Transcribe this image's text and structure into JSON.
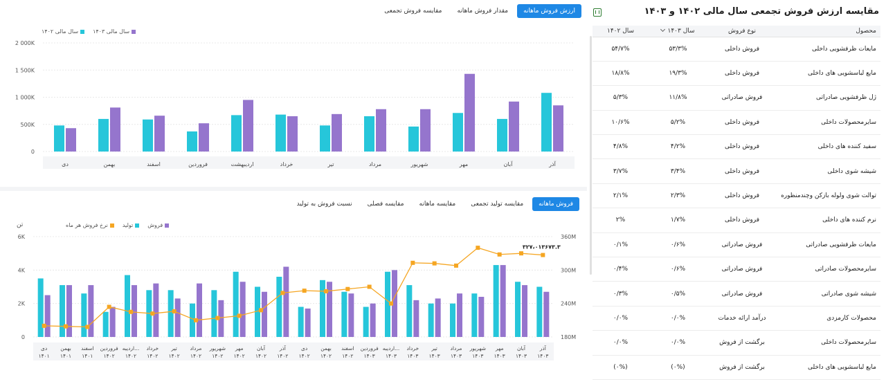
{
  "colors": {
    "teal": "#26c6da",
    "purple": "#9575cd",
    "orange": "#f5a623",
    "blue": "#1e88e5"
  },
  "top_tabs": [
    {
      "label": "ارزش فروش ماهانه",
      "active": true
    },
    {
      "label": "مقدار فروش ماهانه",
      "active": false
    },
    {
      "label": "مقایسه فروش تجمعی",
      "active": false
    }
  ],
  "bottom_tabs": [
    {
      "label": "فروش ماهانه",
      "active": true
    },
    {
      "label": "مقایسه تولید تجمعی",
      "active": false
    },
    {
      "label": "مقایسه ماهانه",
      "active": false
    },
    {
      "label": "مقایسه فصلی",
      "active": false
    },
    {
      "label": "نسبت فروش به تولید",
      "active": false
    }
  ],
  "top_legend": [
    {
      "label": "سال مالی ۱۴۰۳",
      "color": "#9575cd"
    },
    {
      "label": "سال مالی ۱۴۰۲",
      "color": "#26c6da"
    }
  ],
  "bottom_legend": [
    {
      "label": "فروش",
      "color": "#9575cd"
    },
    {
      "label": "تولید",
      "color": "#26c6da"
    },
    {
      "label": "نرخ فروش هر ماه",
      "color": "#f5a623"
    }
  ],
  "bottom_unit_label": "تن",
  "chart_data": [
    {
      "type": "bar",
      "categories": [
        "آذر",
        "آبان",
        "مهر",
        "شهریور",
        "مرداد",
        "تیر",
        "خرداد",
        "اردیبهشت",
        "فروردین",
        "اسفند",
        "بهمن",
        "دی"
      ],
      "series": [
        {
          "name": "سال مالی ۱۴۰۲",
          "values": [
            1080,
            600,
            710,
            460,
            650,
            480,
            680,
            670,
            370,
            590,
            600,
            480
          ]
        },
        {
          "name": "سال مالی ۱۴۰۳",
          "values": [
            850,
            920,
            1430,
            780,
            780,
            690,
            650,
            950,
            520,
            660,
            810,
            430
          ]
        }
      ],
      "ylim": [
        0,
        2000
      ],
      "yticks": [
        "0",
        "500K",
        "1 000K",
        "1 500K",
        "2 000K"
      ]
    },
    {
      "type": "bar",
      "categories": [
        "دی ۱۴۰۱",
        "بهمن ۱۴۰۱",
        "اسفند ۱۴۰۱",
        "فروردین ۱۴۰۲",
        "اردیبه... ۱۴۰۲",
        "خرداد ۱۴۰۲",
        "تیر ۱۴۰۲",
        "مرداد ۱۴۰۲",
        "شهریور ۱۴۰۲",
        "مهر ۱۴۰۲",
        "آبان ۱۴۰۲",
        "آذر ۱۴۰۲",
        "دی ۱۴۰۲",
        "بهمن ۱۴۰۲",
        "اسفند ۱۴۰۲",
        "فروردین ۱۴۰۳",
        "اردیبه... ۱۴۰۳",
        "خرداد ۱۴۰۳",
        "تیر ۱۴۰۳",
        "مرداد ۱۴۰۳",
        "شهریور ۱۴۰۳",
        "مهر ۱۴۰۳",
        "آبان ۱۴۰۳",
        "آذر ۱۴۰۳"
      ],
      "series": [
        {
          "name": "تولید",
          "values": [
            3500,
            3100,
            2600,
            1500,
            3700,
            2800,
            2800,
            2000,
            2800,
            3900,
            3000,
            3600,
            1800,
            3400,
            2700,
            1800,
            3900,
            3100,
            2000,
            2000,
            2600,
            4300,
            3300,
            3000
          ]
        },
        {
          "name": "فروش",
          "values": [
            2500,
            3100,
            3100,
            1800,
            3100,
            3200,
            2300,
            3200,
            2200,
            3300,
            2700,
            4200,
            1700,
            3300,
            2600,
            2000,
            4000,
            2200,
            2300,
            2600,
            2400,
            4300,
            3100,
            2700
          ]
        },
        {
          "name": "نرخ فروش هر ماه",
          "values": [
            200,
            199,
            198,
            234,
            225,
            222,
            226,
            210,
            214,
            218,
            228,
            259,
            263,
            262,
            266,
            270,
            240,
            313,
            312,
            308,
            340,
            328,
            330,
            327
          ]
        }
      ],
      "ylim_left": [
        0,
        6000
      ],
      "yticks_left": [
        "0",
        "2K",
        "4K",
        "6K"
      ],
      "ylim_right": [
        180,
        360
      ],
      "yticks_right": [
        "180M",
        "240M",
        "300M",
        "360M"
      ],
      "annotation": "۳۲۷،۰۱۳۶۷۳.۳"
    }
  ],
  "table": {
    "title": "مقایسه ارزش فروش تجمعی سال مالی ۱۴۰۲ و ۱۴۰۳",
    "headers": [
      "محصول",
      "نوع فروش",
      "سال ۱۴۰۳",
      "سال ۱۴۰۲"
    ],
    "rows": [
      [
        "مایعات ظرفشویی داخلی",
        "فروش داخلی",
        "۵۳/۳%",
        "۵۴/۷%"
      ],
      [
        "مایع لباسشویی های داخلی",
        "فروش داخلی",
        "۱۹/۳%",
        "۱۸/۸%"
      ],
      [
        "ژل ظرفشویی صادراتی",
        "فروش صادراتی",
        "۱۱/۸%",
        "۵/۳%"
      ],
      [
        "سایرمحصولات داخلی",
        "فروش داخلی",
        "۵/۲%",
        "۱۰/۶%"
      ],
      [
        "سفید کننده های داخلی",
        "فروش داخلی",
        "۴/۲%",
        "۴/۸%"
      ],
      [
        "شیشه شوی داخلی",
        "فروش داخلی",
        "۳/۴%",
        "۳/۷%"
      ],
      [
        "توالت شوی ولوله بازکن وچندمنظوره",
        "فروش داخلی",
        "۲/۳%",
        "۲/۱%"
      ],
      [
        "نرم کننده های داخلی",
        "فروش داخلی",
        "۱/۷%",
        "۲%"
      ],
      [
        "مایعات ظرفشویی صادراتی",
        "فروش صادراتی",
        "۰/۶%",
        "۰/۱%"
      ],
      [
        "سایرمحصولات صادراتی",
        "فروش صادراتی",
        "۰/۶%",
        "۰/۴%"
      ],
      [
        "شیشه شوی صادراتی",
        "فروش صادراتی",
        "۰/۵%",
        "۰/۳%"
      ],
      [
        "محصولات کارمزدی",
        "درآمد ارائه خدمات",
        "۰/۰%",
        "۰/۰%"
      ],
      [
        "سایرمحصولات داخلی",
        "برگشت از فروش",
        "۰/۰%",
        "۰/۰%"
      ],
      [
        "مایع لباسشویی های داخلی",
        "برگشت از فروش",
        "(۰%)",
        "(۰%)"
      ]
    ]
  }
}
